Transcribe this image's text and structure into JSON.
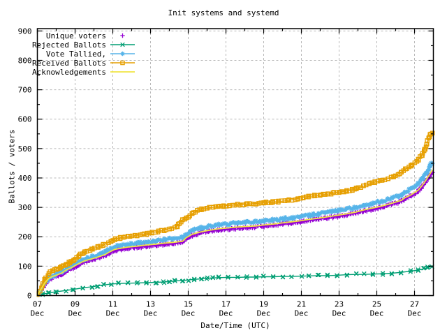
{
  "chart_data": {
    "type": "line",
    "title": "Init systems and systemd",
    "xlabel": "Date/Time (UTC)",
    "ylabel": "Ballots / voters",
    "ylim": [
      0,
      900
    ],
    "ytick_step": 100,
    "xlim_days_december": [
      7,
      28
    ],
    "grid": true,
    "legend_position": "top-left-inside",
    "grid_color": "#b8b8b8",
    "xticks": [
      {
        "day": 7,
        "line1": "07",
        "line2": "Dec"
      },
      {
        "day": 9,
        "line1": "09",
        "line2": "Dec"
      },
      {
        "day": 11,
        "line1": "11",
        "line2": "Dec"
      },
      {
        "day": 13,
        "line1": "13",
        "line2": "Dec"
      },
      {
        "day": 15,
        "line1": "15",
        "line2": "Dec"
      },
      {
        "day": 17,
        "line1": "17",
        "line2": "Dec"
      },
      {
        "day": 19,
        "line1": "19",
        "line2": "Dec"
      },
      {
        "day": 21,
        "line1": "21",
        "line2": "Dec"
      },
      {
        "day": 23,
        "line1": "23",
        "line2": "Dec"
      },
      {
        "day": 25,
        "line1": "25",
        "line2": "Dec"
      },
      {
        "day": 27,
        "line1": "27",
        "line2": "Dec"
      }
    ],
    "series": [
      {
        "name": "Unique voters",
        "color": "#9400d3",
        "marker": "plus",
        "line": false,
        "points": [
          [
            7.0,
            0
          ],
          [
            7.2,
            18
          ],
          [
            7.4,
            40
          ],
          [
            7.6,
            54
          ],
          [
            7.8,
            61
          ],
          [
            8.0,
            65
          ],
          [
            8.3,
            73
          ],
          [
            8.5,
            82
          ],
          [
            8.9,
            94
          ],
          [
            9.2,
            105
          ],
          [
            9.5,
            114
          ],
          [
            9.9,
            121
          ],
          [
            10.3,
            129
          ],
          [
            10.6,
            136
          ],
          [
            10.9,
            147
          ],
          [
            11.1,
            153
          ],
          [
            11.4,
            157
          ],
          [
            11.8,
            161
          ],
          [
            12.3,
            164
          ],
          [
            12.8,
            168
          ],
          [
            13.3,
            171
          ],
          [
            13.7,
            174
          ],
          [
            14.2,
            177
          ],
          [
            14.7,
            181
          ],
          [
            14.9,
            193
          ],
          [
            15.2,
            204
          ],
          [
            15.5,
            210
          ],
          [
            15.7,
            213
          ],
          [
            16.1,
            218
          ],
          [
            16.6,
            223
          ],
          [
            17.1,
            226
          ],
          [
            17.6,
            229
          ],
          [
            18.1,
            231
          ],
          [
            18.6,
            233
          ],
          [
            19.0,
            236
          ],
          [
            19.5,
            239
          ],
          [
            20.0,
            243
          ],
          [
            20.5,
            247
          ],
          [
            21.0,
            251
          ],
          [
            21.4,
            255
          ],
          [
            21.9,
            259
          ],
          [
            22.4,
            264
          ],
          [
            22.9,
            269
          ],
          [
            23.4,
            274
          ],
          [
            23.9,
            280
          ],
          [
            24.3,
            287
          ],
          [
            24.8,
            294
          ],
          [
            25.3,
            301
          ],
          [
            25.8,
            310
          ],
          [
            26.3,
            320
          ],
          [
            26.5,
            329
          ],
          [
            26.8,
            338
          ],
          [
            27.2,
            355
          ],
          [
            27.4,
            370
          ],
          [
            27.6,
            388
          ],
          [
            27.8,
            408
          ],
          [
            27.95,
            421
          ]
        ]
      },
      {
        "name": "Rejected Ballots",
        "color": "#009e73",
        "marker": "cross",
        "line": true,
        "points": [
          [
            7.0,
            0
          ],
          [
            7.3,
            5
          ],
          [
            7.6,
            9
          ],
          [
            8.0,
            13
          ],
          [
            8.5,
            17
          ],
          [
            8.9,
            21
          ],
          [
            9.4,
            26
          ],
          [
            9.9,
            30
          ],
          [
            10.2,
            33
          ],
          [
            10.5,
            36
          ],
          [
            10.9,
            39
          ],
          [
            11.3,
            41
          ],
          [
            11.8,
            42
          ],
          [
            12.3,
            43
          ],
          [
            12.8,
            44
          ],
          [
            13.3,
            45
          ],
          [
            13.7,
            46
          ],
          [
            14.0,
            48
          ],
          [
            14.3,
            50
          ],
          [
            14.7,
            51
          ],
          [
            15.0,
            53
          ],
          [
            15.3,
            55
          ],
          [
            15.7,
            57
          ],
          [
            16.0,
            59
          ],
          [
            16.3,
            60
          ],
          [
            16.6,
            61
          ],
          [
            17.1,
            62
          ],
          [
            17.6,
            62
          ],
          [
            18.1,
            63
          ],
          [
            18.6,
            63
          ],
          [
            19.0,
            64
          ],
          [
            19.5,
            64
          ],
          [
            20.0,
            65
          ],
          [
            20.5,
            65
          ],
          [
            21.0,
            66
          ],
          [
            21.4,
            67
          ],
          [
            21.9,
            68
          ],
          [
            22.4,
            68
          ],
          [
            22.9,
            69
          ],
          [
            23.4,
            71
          ],
          [
            23.9,
            72
          ],
          [
            24.3,
            72
          ],
          [
            24.8,
            73
          ],
          [
            25.3,
            74
          ],
          [
            25.8,
            76
          ],
          [
            26.3,
            79
          ],
          [
            26.8,
            83
          ],
          [
            27.2,
            87
          ],
          [
            27.5,
            91
          ],
          [
            27.7,
            95
          ],
          [
            27.95,
            101
          ]
        ]
      },
      {
        "name": "Vote Tallied,",
        "color": "#56b4e9",
        "marker": "star",
        "line": true,
        "points": [
          [
            7.0,
            0
          ],
          [
            7.2,
            20
          ],
          [
            7.4,
            45
          ],
          [
            7.6,
            60
          ],
          [
            7.8,
            68
          ],
          [
            8.0,
            72
          ],
          [
            8.3,
            80
          ],
          [
            8.5,
            90
          ],
          [
            8.9,
            103
          ],
          [
            9.2,
            115
          ],
          [
            9.5,
            124
          ],
          [
            9.9,
            132
          ],
          [
            10.3,
            140
          ],
          [
            10.6,
            148
          ],
          [
            10.9,
            160
          ],
          [
            11.1,
            166
          ],
          [
            11.4,
            170
          ],
          [
            11.8,
            174
          ],
          [
            12.3,
            178
          ],
          [
            12.8,
            182
          ],
          [
            13.3,
            186
          ],
          [
            13.7,
            190
          ],
          [
            14.2,
            194
          ],
          [
            14.7,
            198
          ],
          [
            14.9,
            210
          ],
          [
            15.2,
            222
          ],
          [
            15.5,
            228
          ],
          [
            15.7,
            231
          ],
          [
            16.1,
            236
          ],
          [
            16.6,
            241
          ],
          [
            17.1,
            244
          ],
          [
            17.6,
            247
          ],
          [
            18.1,
            249
          ],
          [
            18.6,
            251
          ],
          [
            19.0,
            254
          ],
          [
            19.5,
            257
          ],
          [
            20.0,
            261
          ],
          [
            20.5,
            265
          ],
          [
            21.0,
            269
          ],
          [
            21.4,
            273
          ],
          [
            21.9,
            278
          ],
          [
            22.4,
            284
          ],
          [
            22.9,
            289
          ],
          [
            23.4,
            294
          ],
          [
            23.9,
            300
          ],
          [
            24.3,
            308
          ],
          [
            24.8,
            315
          ],
          [
            25.3,
            322
          ],
          [
            25.8,
            332
          ],
          [
            26.3,
            342
          ],
          [
            26.5,
            352
          ],
          [
            26.8,
            362
          ],
          [
            27.2,
            380
          ],
          [
            27.4,
            396
          ],
          [
            27.6,
            415
          ],
          [
            27.8,
            438
          ],
          [
            27.95,
            452
          ]
        ]
      },
      {
        "name": "Received Ballots",
        "color": "#e69f00",
        "marker": "square",
        "line": true,
        "points": [
          [
            7.0,
            0
          ],
          [
            7.2,
            25
          ],
          [
            7.4,
            55
          ],
          [
            7.6,
            75
          ],
          [
            7.8,
            85
          ],
          [
            8.0,
            90
          ],
          [
            8.2,
            95
          ],
          [
            8.5,
            105
          ],
          [
            8.7,
            112
          ],
          [
            8.9,
            120
          ],
          [
            9.2,
            135
          ],
          [
            9.5,
            148
          ],
          [
            9.9,
            158
          ],
          [
            10.2,
            165
          ],
          [
            10.5,
            172
          ],
          [
            10.9,
            185
          ],
          [
            11.1,
            192
          ],
          [
            11.4,
            196
          ],
          [
            11.8,
            200
          ],
          [
            12.3,
            205
          ],
          [
            12.8,
            210
          ],
          [
            13.1,
            215
          ],
          [
            13.4,
            218
          ],
          [
            13.7,
            222
          ],
          [
            14.0,
            228
          ],
          [
            14.4,
            235
          ],
          [
            14.7,
            258
          ],
          [
            14.9,
            263
          ],
          [
            15.2,
            278
          ],
          [
            15.5,
            290
          ],
          [
            15.7,
            294
          ],
          [
            16.0,
            297
          ],
          [
            16.3,
            300
          ],
          [
            16.6,
            302
          ],
          [
            16.9,
            305
          ],
          [
            17.2,
            307
          ],
          [
            17.6,
            309
          ],
          [
            18.1,
            311
          ],
          [
            18.6,
            313
          ],
          [
            19.0,
            316
          ],
          [
            19.5,
            318
          ],
          [
            19.8,
            320
          ],
          [
            20.1,
            322
          ],
          [
            20.5,
            326
          ],
          [
            20.8,
            330
          ],
          [
            21.1,
            334
          ],
          [
            21.4,
            337
          ],
          [
            21.7,
            340
          ],
          [
            22.0,
            342
          ],
          [
            22.4,
            345
          ],
          [
            22.7,
            349
          ],
          [
            23.0,
            352
          ],
          [
            23.4,
            356
          ],
          [
            23.7,
            360
          ],
          [
            23.9,
            364
          ],
          [
            24.3,
            372
          ],
          [
            24.6,
            380
          ],
          [
            24.9,
            386
          ],
          [
            25.3,
            392
          ],
          [
            25.6,
            398
          ],
          [
            25.9,
            404
          ],
          [
            26.3,
            420
          ],
          [
            26.5,
            430
          ],
          [
            26.8,
            442
          ],
          [
            27.2,
            462
          ],
          [
            27.4,
            478
          ],
          [
            27.55,
            500
          ],
          [
            27.65,
            515
          ],
          [
            27.75,
            535
          ],
          [
            27.85,
            548
          ],
          [
            27.95,
            553
          ]
        ]
      },
      {
        "name": "Acknowledgements",
        "color": "#f0e442",
        "marker": "none",
        "line": true,
        "points": [
          [
            7.0,
            2
          ],
          [
            7.2,
            22
          ],
          [
            7.4,
            44
          ],
          [
            7.6,
            58
          ],
          [
            7.8,
            65
          ],
          [
            8.0,
            69
          ],
          [
            8.3,
            77
          ],
          [
            8.5,
            86
          ],
          [
            8.9,
            98
          ],
          [
            9.2,
            109
          ],
          [
            9.5,
            118
          ],
          [
            9.9,
            125
          ],
          [
            10.3,
            133
          ],
          [
            10.6,
            140
          ],
          [
            10.9,
            151
          ],
          [
            11.1,
            157
          ],
          [
            11.4,
            161
          ],
          [
            11.8,
            165
          ],
          [
            12.3,
            168
          ],
          [
            12.8,
            172
          ],
          [
            13.3,
            175
          ],
          [
            13.7,
            178
          ],
          [
            14.2,
            181
          ],
          [
            14.7,
            185
          ],
          [
            14.9,
            197
          ],
          [
            15.2,
            208
          ],
          [
            15.5,
            214
          ],
          [
            15.7,
            217
          ],
          [
            16.1,
            222
          ],
          [
            16.6,
            227
          ],
          [
            17.1,
            230
          ],
          [
            17.6,
            233
          ],
          [
            18.1,
            235
          ],
          [
            18.6,
            237
          ],
          [
            19.0,
            240
          ],
          [
            19.5,
            243
          ],
          [
            20.0,
            247
          ],
          [
            20.5,
            251
          ],
          [
            21.0,
            255
          ],
          [
            21.4,
            259
          ],
          [
            21.9,
            263
          ],
          [
            22.4,
            268
          ],
          [
            22.9,
            273
          ],
          [
            23.4,
            278
          ],
          [
            23.9,
            284
          ],
          [
            24.3,
            291
          ],
          [
            24.8,
            298
          ],
          [
            25.3,
            305
          ],
          [
            25.8,
            314
          ],
          [
            26.3,
            324
          ],
          [
            26.5,
            333
          ],
          [
            26.8,
            342
          ],
          [
            27.2,
            359
          ],
          [
            27.4,
            374
          ],
          [
            27.6,
            392
          ],
          [
            27.8,
            412
          ],
          [
            27.95,
            428
          ]
        ]
      }
    ]
  }
}
